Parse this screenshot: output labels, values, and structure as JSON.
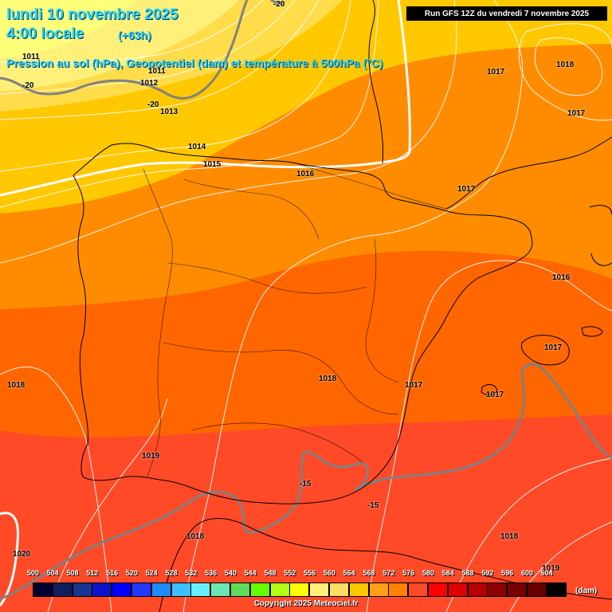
{
  "header": {
    "date": "lundi 10 novembre 2025",
    "time": "4:00 locale",
    "lead": "(+63h)",
    "description": "Pression au sol (hPa), Geopotentiel (dam) et température à 500hPa (°C)"
  },
  "run_info": "Run GFS 12Z du vendredi 7 novembre 2025",
  "copyright": "Copyright 2025 Meteociel.fr",
  "isobar_labels": [
    "1011",
    "1011",
    "1012",
    "1013",
    "1014",
    "1015",
    "1016",
    "1017",
    "1017",
    "1017",
    "1017",
    "1016",
    "1017",
    "1017",
    "1018",
    "1018",
    "1019",
    "1018",
    "1018",
    "1019",
    "1020",
    "1018"
  ],
  "temperature_labels": [
    "-20",
    "-20",
    "-20",
    "-15",
    "-15"
  ],
  "legend": {
    "unit": "(dam)",
    "ticks": [
      "500",
      "504",
      "508",
      "512",
      "516",
      "520",
      "524",
      "528",
      "532",
      "536",
      "540",
      "544",
      "548",
      "552",
      "556",
      "560",
      "564",
      "568",
      "572",
      "576",
      "580",
      "584",
      "588",
      "592",
      "596",
      "600",
      "604"
    ],
    "colors": [
      "#000030",
      "#101e5e",
      "#17348e",
      "#0b14c8",
      "#0000ff",
      "#2339ff",
      "#1e8cff",
      "#3cc0ff",
      "#66f0ff",
      "#6ce6b4",
      "#5fdc5a",
      "#66ff00",
      "#b0ff14",
      "#ffff00",
      "#fff07a",
      "#ffdc64",
      "#ffc800",
      "#ffa014",
      "#ff8200",
      "#ff4a28",
      "#ff0000",
      "#dc0000",
      "#b40000",
      "#8c0000",
      "#780000",
      "#640000",
      "#000000"
    ]
  },
  "colors": {
    "band_556": "#fff07a",
    "band_560": "#ffdc64",
    "band_564": "#ffc800",
    "band_568": "#ffa014",
    "band_572": "#ff8200",
    "band_576": "#ff4a28",
    "title": "#27d7ff",
    "isotherm": "#808080",
    "isobar": "#ffffff"
  }
}
